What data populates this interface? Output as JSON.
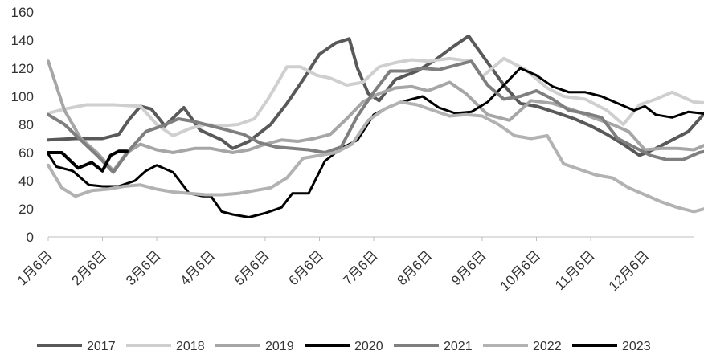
{
  "chart_data": {
    "type": "line",
    "title": "",
    "xlabel": "",
    "ylabel": "",
    "ylim": [
      0,
      160
    ],
    "yticks": [
      "0",
      "20",
      "40",
      "60",
      "80",
      "100",
      "120",
      "140",
      "160"
    ],
    "categories": [
      "1月6日",
      "2月6日",
      "3月6日",
      "4月6日",
      "5月6日",
      "6月6日",
      "7月6日",
      "8月6日",
      "9月6日",
      "10月6日",
      "11月6日",
      "12月6日"
    ],
    "grid": false,
    "legend_position": "bottom",
    "series": [
      {
        "name": "2017",
        "color": "#595959",
        "width": 4,
        "points": [
          [
            0,
            69
          ],
          [
            0.5,
            70
          ],
          [
            1.0,
            70
          ],
          [
            1.3,
            73
          ],
          [
            1.5,
            84
          ],
          [
            1.7,
            93
          ],
          [
            1.9,
            91
          ],
          [
            2.15,
            79
          ],
          [
            2.5,
            92
          ],
          [
            2.8,
            76
          ],
          [
            3.2,
            69
          ],
          [
            3.4,
            63
          ],
          [
            3.7,
            68
          ],
          [
            4.1,
            80
          ],
          [
            4.4,
            95
          ],
          [
            4.7,
            112
          ],
          [
            5.0,
            130
          ],
          [
            5.3,
            138
          ],
          [
            5.55,
            141
          ],
          [
            5.7,
            120
          ],
          [
            5.9,
            102
          ],
          [
            6.1,
            97
          ],
          [
            6.4,
            112
          ],
          [
            6.8,
            118
          ],
          [
            7.1,
            125
          ],
          [
            7.45,
            135
          ],
          [
            7.75,
            143
          ],
          [
            8.1,
            124
          ],
          [
            8.4,
            108
          ],
          [
            8.7,
            95
          ],
          [
            9.0,
            93
          ],
          [
            9.4,
            88
          ],
          [
            9.7,
            84
          ],
          [
            10.0,
            79
          ],
          [
            10.3,
            73
          ],
          [
            10.6,
            66
          ],
          [
            10.9,
            58
          ],
          [
            11.2,
            63
          ],
          [
            11.5,
            69
          ],
          [
            11.8,
            75
          ],
          [
            12.1,
            88
          ],
          [
            12.27,
            88
          ]
        ]
      },
      {
        "name": "2018",
        "color": "#cfcfcf",
        "width": 4,
        "points": [
          [
            0,
            88
          ],
          [
            0.3,
            91
          ],
          [
            0.7,
            94
          ],
          [
            1.2,
            94
          ],
          [
            1.7,
            93
          ],
          [
            2.0,
            80
          ],
          [
            2.3,
            72
          ],
          [
            2.6,
            77
          ],
          [
            2.9,
            80
          ],
          [
            3.2,
            79
          ],
          [
            3.5,
            80
          ],
          [
            3.8,
            84
          ],
          [
            4.05,
            98
          ],
          [
            4.4,
            121
          ],
          [
            4.65,
            121
          ],
          [
            4.95,
            115
          ],
          [
            5.2,
            113
          ],
          [
            5.5,
            108
          ],
          [
            5.8,
            110
          ],
          [
            6.1,
            121
          ],
          [
            6.4,
            124
          ],
          [
            6.7,
            126
          ],
          [
            7.0,
            125
          ],
          [
            7.4,
            127
          ],
          [
            7.8,
            125
          ],
          [
            8.0,
            114
          ],
          [
            8.4,
            127
          ],
          [
            8.8,
            119
          ],
          [
            9.2,
            106
          ],
          [
            9.5,
            100
          ],
          [
            9.9,
            98
          ],
          [
            10.3,
            90
          ],
          [
            10.6,
            80
          ],
          [
            10.9,
            94
          ],
          [
            11.2,
            98
          ],
          [
            11.5,
            103
          ],
          [
            11.9,
            96
          ],
          [
            12.27,
            95
          ]
        ]
      },
      {
        "name": "2019",
        "color": "#a6a6a6",
        "width": 4,
        "points": [
          [
            0,
            125
          ],
          [
            0.3,
            90
          ],
          [
            0.6,
            70
          ],
          [
            0.9,
            60
          ],
          [
            1.2,
            47
          ],
          [
            1.45,
            60
          ],
          [
            1.7,
            66
          ],
          [
            2.0,
            62
          ],
          [
            2.3,
            60
          ],
          [
            2.7,
            63
          ],
          [
            3.0,
            63
          ],
          [
            3.4,
            60
          ],
          [
            3.7,
            62
          ],
          [
            4.0,
            66
          ],
          [
            4.3,
            69
          ],
          [
            4.6,
            68
          ],
          [
            4.9,
            70
          ],
          [
            5.2,
            73
          ],
          [
            5.5,
            84
          ],
          [
            5.8,
            96
          ],
          [
            6.1,
            102
          ],
          [
            6.4,
            106
          ],
          [
            6.7,
            107
          ],
          [
            7.0,
            104
          ],
          [
            7.4,
            110
          ],
          [
            7.7,
            102
          ],
          [
            8.1,
            87
          ],
          [
            8.5,
            83
          ],
          [
            8.9,
            97
          ],
          [
            9.3,
            95
          ],
          [
            9.7,
            90
          ],
          [
            10.1,
            84
          ],
          [
            10.4,
            80
          ],
          [
            10.7,
            75
          ],
          [
            11.0,
            62
          ],
          [
            11.3,
            63
          ],
          [
            11.6,
            63
          ],
          [
            11.9,
            62
          ],
          [
            12.27,
            68
          ]
        ]
      },
      {
        "name": "2020",
        "color": "#000000",
        "width": 3,
        "points": [
          [
            0,
            59
          ],
          [
            0.15,
            50
          ],
          [
            0.45,
            47
          ],
          [
            0.75,
            37
          ],
          [
            1.0,
            36
          ],
          [
            1.3,
            36
          ],
          [
            1.6,
            40
          ],
          [
            1.8,
            47
          ],
          [
            2.0,
            51
          ],
          [
            2.3,
            46
          ],
          [
            2.6,
            31
          ],
          [
            2.85,
            29
          ],
          [
            3.0,
            29
          ],
          [
            3.2,
            18
          ],
          [
            3.4,
            16
          ],
          [
            3.7,
            14
          ],
          [
            4.0,
            17
          ],
          [
            4.3,
            21
          ],
          [
            4.5,
            31
          ],
          [
            4.8,
            31
          ],
          [
            5.1,
            54
          ],
          [
            5.4,
            63
          ],
          [
            5.7,
            69
          ],
          [
            6.0,
            87
          ],
          [
            6.3,
            93
          ],
          [
            6.6,
            97
          ],
          [
            6.9,
            100
          ],
          [
            7.2,
            92
          ],
          [
            7.5,
            88
          ],
          [
            7.8,
            89
          ],
          [
            8.1,
            96
          ],
          [
            8.4,
            108
          ],
          [
            8.7,
            120
          ],
          [
            9.0,
            115
          ],
          [
            9.3,
            107
          ],
          [
            9.6,
            103
          ],
          [
            9.9,
            103
          ],
          [
            10.2,
            100
          ],
          [
            10.5,
            95
          ],
          [
            10.8,
            90
          ],
          [
            11.0,
            93
          ],
          [
            11.2,
            87
          ],
          [
            11.5,
            85
          ],
          [
            11.8,
            89
          ],
          [
            12.27,
            87
          ]
        ]
      },
      {
        "name": "2021",
        "color": "#7f7f7f",
        "width": 4,
        "points": [
          [
            0,
            87
          ],
          [
            0.3,
            80
          ],
          [
            0.6,
            69
          ],
          [
            0.9,
            58
          ],
          [
            1.2,
            46
          ],
          [
            1.5,
            62
          ],
          [
            1.8,
            75
          ],
          [
            2.1,
            79
          ],
          [
            2.4,
            84
          ],
          [
            2.7,
            82
          ],
          [
            3.0,
            79
          ],
          [
            3.3,
            76
          ],
          [
            3.6,
            73
          ],
          [
            3.9,
            67
          ],
          [
            4.2,
            64
          ],
          [
            4.5,
            63
          ],
          [
            4.8,
            62
          ],
          [
            5.1,
            60
          ],
          [
            5.4,
            64
          ],
          [
            5.7,
            86
          ],
          [
            6.0,
            103
          ],
          [
            6.3,
            118
          ],
          [
            6.6,
            118
          ],
          [
            6.9,
            120
          ],
          [
            7.2,
            119
          ],
          [
            7.5,
            122
          ],
          [
            7.8,
            125
          ],
          [
            8.1,
            108
          ],
          [
            8.4,
            98
          ],
          [
            8.7,
            100
          ],
          [
            9.0,
            104
          ],
          [
            9.3,
            98
          ],
          [
            9.6,
            90
          ],
          [
            9.9,
            88
          ],
          [
            10.2,
            85
          ],
          [
            10.5,
            70
          ],
          [
            10.8,
            64
          ],
          [
            11.1,
            58
          ],
          [
            11.4,
            55
          ],
          [
            11.7,
            55
          ],
          [
            12.0,
            60
          ],
          [
            12.27,
            62
          ]
        ]
      },
      {
        "name": "2022",
        "color": "#b2b2b2",
        "width": 4,
        "points": [
          [
            0,
            51
          ],
          [
            0.25,
            35
          ],
          [
            0.5,
            29
          ],
          [
            0.8,
            33
          ],
          [
            1.1,
            34
          ],
          [
            1.4,
            36
          ],
          [
            1.7,
            37
          ],
          [
            2.0,
            34
          ],
          [
            2.3,
            32
          ],
          [
            2.6,
            31
          ],
          [
            2.9,
            30
          ],
          [
            3.2,
            30
          ],
          [
            3.5,
            31
          ],
          [
            3.8,
            33
          ],
          [
            4.1,
            35
          ],
          [
            4.4,
            42
          ],
          [
            4.7,
            56
          ],
          [
            5.0,
            58
          ],
          [
            5.3,
            60
          ],
          [
            5.6,
            66
          ],
          [
            5.9,
            83
          ],
          [
            6.2,
            91
          ],
          [
            6.5,
            96
          ],
          [
            6.8,
            94
          ],
          [
            7.1,
            90
          ],
          [
            7.4,
            86
          ],
          [
            7.7,
            87
          ],
          [
            8.0,
            86
          ],
          [
            8.3,
            80
          ],
          [
            8.6,
            72
          ],
          [
            8.9,
            70
          ],
          [
            9.2,
            72
          ],
          [
            9.5,
            52
          ],
          [
            9.8,
            48
          ],
          [
            10.1,
            44
          ],
          [
            10.4,
            42
          ],
          [
            10.7,
            35
          ],
          [
            11.0,
            30
          ],
          [
            11.3,
            25
          ],
          [
            11.6,
            21
          ],
          [
            11.9,
            18
          ],
          [
            12.1,
            20
          ],
          [
            12.27,
            22
          ]
        ]
      },
      {
        "name": "2023",
        "color": "#000000",
        "width": 4,
        "points": [
          [
            0,
            60
          ],
          [
            0.25,
            60
          ],
          [
            0.55,
            49
          ],
          [
            0.8,
            53
          ],
          [
            1.0,
            47
          ],
          [
            1.15,
            58
          ],
          [
            1.3,
            61
          ],
          [
            1.45,
            61
          ]
        ]
      }
    ]
  }
}
